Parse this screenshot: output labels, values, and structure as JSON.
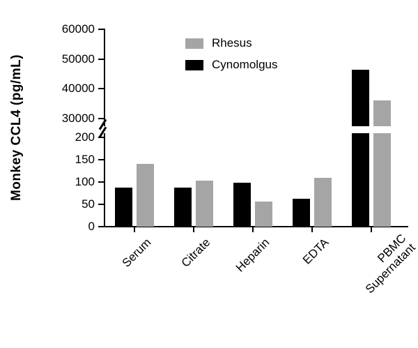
{
  "y_axis": {
    "label": "Monkey CCL4 (pg/mL)"
  },
  "legend": [
    {
      "label": "Rhesus",
      "color": "#a5a5a5"
    },
    {
      "label": "Cynomolgus",
      "color": "#000000"
    }
  ],
  "chart_data": {
    "type": "bar",
    "title": "",
    "xlabel": "",
    "ylabel": "Monkey CCL4 (pg/mL)",
    "categories": [
      "Serum",
      "Citrate",
      "Heparin",
      "EDTA",
      "PBMC\nSupernatant"
    ],
    "series": [
      {
        "name": "Cynomolgus",
        "color": "#000000",
        "values": [
          88,
          88,
          99,
          62,
          46500
        ]
      },
      {
        "name": "Rhesus",
        "color": "#a5a5a5",
        "values": [
          141,
          103,
          56,
          110,
          36000
        ]
      }
    ],
    "axis_break": {
      "lower_range": [
        0,
        200
      ],
      "upper_range": [
        30000,
        60000
      ]
    },
    "lower_ticks": [
      0,
      50,
      100,
      150,
      200
    ],
    "upper_ticks": [
      30000,
      40000,
      50000,
      60000
    ],
    "grid": false,
    "legend_position": "top-center"
  }
}
